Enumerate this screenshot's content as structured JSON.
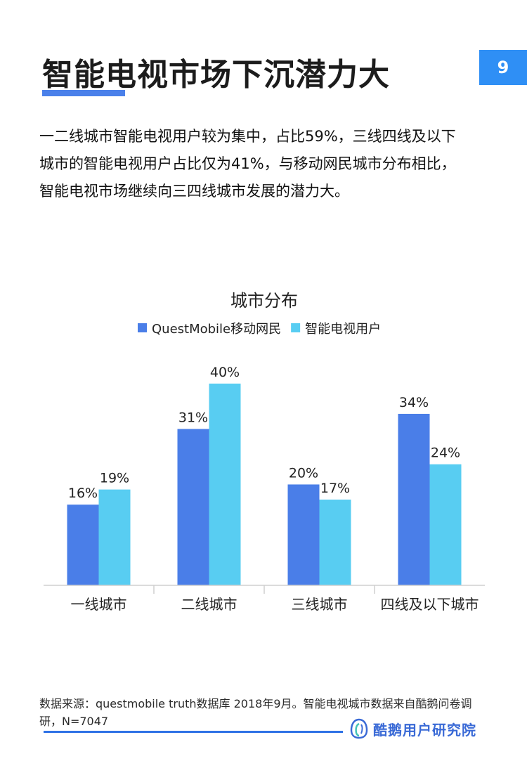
{
  "page": {
    "title": "智能电视市场下沉潜力大",
    "page_number": "9",
    "summary_lines": [
      "一二线城市智能电视用户较为集中，占比59%，三线四线及以下",
      "城市的智能电视用户占比仅为41%，与移动网民城市分布相比，",
      "智能电视市场继续向三四线城市发展的潜力大。"
    ],
    "source_lines": [
      "数据来源：questmobile truth数据库 2018年9月。智能电视城市数据来自酷鹅问卷调",
      "研，N=7047"
    ],
    "brand_name": "酷鹅用户研究院",
    "brand_icon": "penguin-logo-icon"
  },
  "chart_data": {
    "type": "bar",
    "title": "城市分布",
    "categories": [
      "一线城市",
      "二线城市",
      "三线城市",
      "四线及以下城市"
    ],
    "series": [
      {
        "name": "QuestMobile移动网民",
        "values": [
          16,
          31,
          20,
          34
        ],
        "labels": [
          "16%",
          "31%",
          "20%",
          "34%"
        ],
        "color": "#4a7ee8"
      },
      {
        "name": "智能电视用户",
        "values": [
          19,
          40,
          17,
          24
        ],
        "labels": [
          "19%",
          "40%",
          "17%",
          "24%"
        ],
        "color": "#58cdf2"
      }
    ],
    "ylim": [
      0,
      45
    ],
    "value_unit": "%",
    "grid": false,
    "legend_position": "top"
  }
}
